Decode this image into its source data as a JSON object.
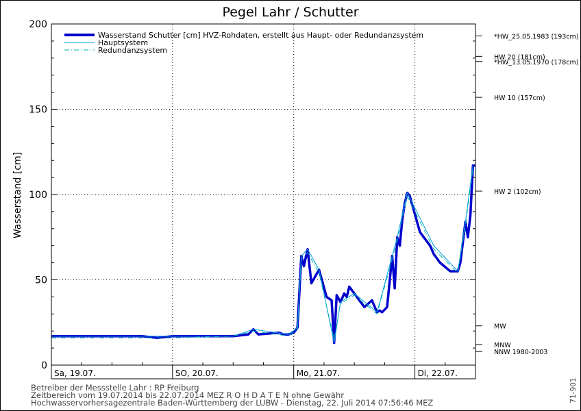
{
  "chart_data": {
    "type": "line",
    "title": "Pegel Lahr / Schutter",
    "ylabel": "Wasserstand [cm]",
    "ylim": [
      0,
      200
    ],
    "yticks": [
      0,
      50,
      100,
      150,
      200
    ],
    "xlim": [
      "2014-07-19T00:00",
      "2014-07-22T12:00"
    ],
    "day_labels": [
      "Sa, 19.07.",
      "SO, 20.07.",
      "Mo, 21.07.",
      "Di, 22.07."
    ],
    "grid": true,
    "legend": {
      "placement": "top-left",
      "entries": [
        {
          "label": "Wasserstand Schutter [cm] HVZ-Rohdaten, erstellt aus Haupt- oder Redundanzsystem",
          "color": "#0000cc",
          "style": "thick"
        },
        {
          "label": "Hauptsystem",
          "color": "#00a0dd",
          "style": "solid"
        },
        {
          "label": "Redundanzsystem",
          "color": "#00b0b0",
          "style": "dashdot"
        }
      ]
    },
    "reference_levels": [
      {
        "label": "*HW_25.05.1983 (193cm)",
        "value": 193
      },
      {
        "label": "HW 20 (181cm)",
        "value": 181
      },
      {
        "label": "*HW_13.05.1970 (178cm)",
        "value": 178
      },
      {
        "label": "HW 10 (157cm)",
        "value": 157
      },
      {
        "label": "HW 2 (102cm)",
        "value": 102
      },
      {
        "label": "MW",
        "value": 23
      },
      {
        "label": "MNW",
        "value": 12
      },
      {
        "label": "NNW 1980-2003",
        "value": 8
      }
    ],
    "series": [
      {
        "name": "Wasserstand Schutter [cm] HVZ-Rohdaten, erstellt aus Haupt- oder Redundanzsystem",
        "x": [
          "2014-07-19T00:00",
          "2014-07-19T06:00",
          "2014-07-19T12:00",
          "2014-07-19T18:00",
          "2014-07-19T21:00",
          "2014-07-20T00:00",
          "2014-07-20T06:00",
          "2014-07-20T12:00",
          "2014-07-20T15:00",
          "2014-07-20T16:00",
          "2014-07-20T17:00",
          "2014-07-20T21:00",
          "2014-07-20T22:00",
          "2014-07-20T23:00",
          "2014-07-21T00:00",
          "2014-07-21T00:45",
          "2014-07-21T01:30",
          "2014-07-21T02:00",
          "2014-07-21T02:45",
          "2014-07-21T03:30",
          "2014-07-21T05:00",
          "2014-07-21T06:30",
          "2014-07-21T07:30",
          "2014-07-21T08:00",
          "2014-07-21T08:30",
          "2014-07-21T09:15",
          "2014-07-21T10:00",
          "2014-07-21T10:30",
          "2014-07-21T11:00",
          "2014-07-21T12:00",
          "2014-07-21T13:00",
          "2014-07-21T14:00",
          "2014-07-21T15:30",
          "2014-07-21T16:30",
          "2014-07-21T17:00",
          "2014-07-21T17:30",
          "2014-07-21T18:30",
          "2014-07-21T19:30",
          "2014-07-21T20:00",
          "2014-07-21T20:30",
          "2014-07-21T21:00",
          "2014-07-21T21:30",
          "2014-07-21T22:00",
          "2014-07-21T22:30",
          "2014-07-21T23:00",
          "2014-07-22T01:00",
          "2014-07-22T03:00",
          "2014-07-22T03:45",
          "2014-07-22T05:00",
          "2014-07-22T07:00",
          "2014-07-22T08:30",
          "2014-07-22T09:00",
          "2014-07-22T10:00",
          "2014-07-22T10:30",
          "2014-07-22T11:00",
          "2014-07-22T11:30",
          "2014-07-22T12:00"
        ],
        "values": [
          17,
          17,
          17,
          17,
          16,
          17,
          17,
          17,
          18,
          21,
          18,
          19,
          18,
          18,
          19,
          22,
          64,
          58,
          68,
          48,
          56,
          40,
          38,
          13,
          41,
          37,
          42,
          40,
          46,
          42,
          38,
          34,
          38,
          31,
          32,
          31,
          34,
          64,
          45,
          75,
          70,
          85,
          95,
          101,
          99,
          78,
          70,
          65,
          60,
          55,
          55,
          60,
          84,
          75,
          88,
          117,
          117
        ]
      },
      {
        "name": "Hauptsystem",
        "x": [
          "2014-07-19T00:00",
          "2014-07-19T12:00",
          "2014-07-20T00:00",
          "2014-07-20T12:00",
          "2014-07-20T16:00",
          "2014-07-20T23:00",
          "2014-07-21T00:45",
          "2014-07-21T01:30",
          "2014-07-21T02:45",
          "2014-07-21T05:00",
          "2014-07-21T08:00",
          "2014-07-21T09:15",
          "2014-07-21T12:00",
          "2014-07-21T16:30",
          "2014-07-21T19:30",
          "2014-07-21T20:30",
          "2014-07-21T22:30",
          "2014-07-22T03:45",
          "2014-07-22T08:30",
          "2014-07-22T10:00",
          "2014-07-22T11:30"
        ],
        "values": [
          17,
          17,
          17,
          17,
          21,
          18,
          22,
          64,
          68,
          56,
          13,
          37,
          42,
          31,
          64,
          75,
          101,
          70,
          55,
          84,
          117
        ]
      },
      {
        "name": "Redundanzsystem",
        "x": [
          "2014-07-19T00:00",
          "2014-07-19T12:00",
          "2014-07-20T00:00",
          "2014-07-20T12:00",
          "2014-07-20T16:00",
          "2014-07-20T23:00",
          "2014-07-21T00:45",
          "2014-07-21T01:30",
          "2014-07-21T02:45",
          "2014-07-21T05:00",
          "2014-07-21T08:00",
          "2014-07-21T09:15",
          "2014-07-21T12:00",
          "2014-07-21T16:30",
          "2014-07-21T19:30",
          "2014-07-21T20:30",
          "2014-07-21T22:30",
          "2014-07-22T03:45",
          "2014-07-22T08:30",
          "2014-07-22T10:00",
          "2014-07-22T11:30"
        ],
        "values": [
          16,
          16,
          16,
          17,
          20,
          17,
          21,
          62,
          66,
          54,
          15,
          36,
          41,
          30,
          62,
          73,
          99,
          68,
          54,
          82,
          115
        ]
      }
    ]
  },
  "footer": {
    "line1": "Betreiber der Messstelle Lahr : RP Freiburg",
    "line2": "Zeitbereich vom 19.07.2014 bis 22.07.2014    MEZ     R O H D A T E N ohne Gewähr",
    "line3": "Hochwasservorhersagezentrale Baden-Württemberg der LUBW - Dienstag, 22. Juli 2014 07:56:46 MEZ"
  },
  "side_code": "71-901"
}
